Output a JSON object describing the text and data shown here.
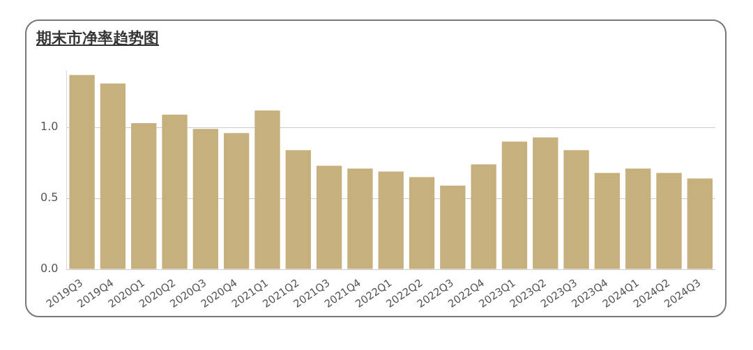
{
  "chart_data": {
    "type": "bar",
    "title": "期末市净率趋势图",
    "categories": [
      "2019Q3",
      "2019Q4",
      "2020Q1",
      "2020Q2",
      "2020Q3",
      "2020Q4",
      "2021Q1",
      "2021Q2",
      "2021Q3",
      "2021Q4",
      "2022Q1",
      "2022Q2",
      "2022Q3",
      "2022Q4",
      "2023Q1",
      "2023Q2",
      "2023Q3",
      "2023Q4",
      "2024Q1",
      "2024Q2",
      "2024Q3"
    ],
    "values": [
      1.37,
      1.31,
      1.03,
      1.09,
      0.99,
      0.96,
      1.12,
      0.84,
      0.73,
      0.71,
      0.69,
      0.65,
      0.59,
      0.74,
      0.9,
      0.93,
      0.84,
      0.68,
      0.71,
      0.68,
      0.64
    ],
    "color": "#c5b07e",
    "yticks": [
      {
        "value": 0,
        "label": "0.0"
      },
      {
        "value": 0.5,
        "label": "0.5"
      },
      {
        "value": 1,
        "label": "1.0"
      }
    ],
    "ylim": [
      0,
      1.4
    ],
    "grid": "y",
    "legend": false
  }
}
